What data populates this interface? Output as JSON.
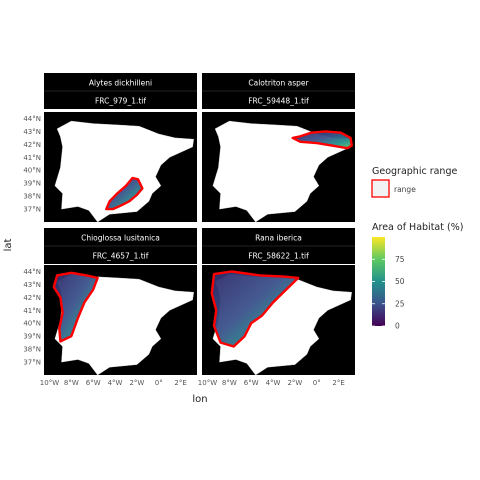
{
  "chart_data": {
    "type": "heatmap",
    "xlabel": "lon",
    "ylabel": "lat",
    "x_ticks": [
      "10°W",
      "8°W",
      "6°W",
      "4°W",
      "2°W",
      "0°",
      "2°E"
    ],
    "y_ticks": [
      "37°N",
      "38°N",
      "39°N",
      "40°N",
      "41°N",
      "42°N",
      "43°N",
      "44°N"
    ],
    "xlim": [
      -10.5,
      3.5
    ],
    "ylim": [
      36,
      44.5
    ],
    "facets": [
      {
        "species": "Alytes dickhilleni",
        "file": "FRC_979_1.tif",
        "range_outline": [
          [
            -4.2,
            37.0
          ],
          [
            -3.4,
            37.3
          ],
          [
            -2.7,
            37.6
          ],
          [
            -2.0,
            38.1
          ],
          [
            -1.5,
            38.6
          ],
          [
            -1.9,
            39.3
          ],
          [
            -2.4,
            39.4
          ],
          [
            -3.0,
            38.8
          ],
          [
            -3.8,
            38.2
          ],
          [
            -4.5,
            37.6
          ],
          [
            -4.8,
            37.0
          ]
        ]
      },
      {
        "species": "Calotriton asper",
        "file": "FRC_59448_1.tif",
        "range_outline": [
          [
            -1.6,
            42.6
          ],
          [
            -0.5,
            42.9
          ],
          [
            0.8,
            43.0
          ],
          [
            2.2,
            42.9
          ],
          [
            3.1,
            42.5
          ],
          [
            3.2,
            41.9
          ],
          [
            2.8,
            41.7
          ],
          [
            1.4,
            41.9
          ],
          [
            0.0,
            42.1
          ],
          [
            -1.5,
            42.2
          ],
          [
            -2.2,
            42.5
          ]
        ]
      },
      {
        "species": "Chioglossa lusitanica",
        "file": "FRC_4657_1.tif",
        "range_outline": [
          [
            -9.3,
            43.7
          ],
          [
            -8.0,
            43.9
          ],
          [
            -6.6,
            43.7
          ],
          [
            -5.6,
            43.5
          ],
          [
            -6.0,
            42.6
          ],
          [
            -6.8,
            41.6
          ],
          [
            -7.4,
            40.4
          ],
          [
            -8.0,
            39.0
          ],
          [
            -9.0,
            38.6
          ],
          [
            -9.1,
            39.6
          ],
          [
            -8.8,
            40.8
          ],
          [
            -9.0,
            42.0
          ],
          [
            -9.6,
            42.8
          ]
        ]
      },
      {
        "species": "Rana iberica",
        "file": "FRC_58622_1.tif",
        "range_outline": [
          [
            -9.4,
            43.8
          ],
          [
            -7.8,
            44.0
          ],
          [
            -5.2,
            43.7
          ],
          [
            -3.0,
            43.6
          ],
          [
            -1.7,
            43.5
          ],
          [
            -2.8,
            42.6
          ],
          [
            -4.0,
            41.6
          ],
          [
            -5.0,
            40.6
          ],
          [
            -6.0,
            40.0
          ],
          [
            -6.6,
            39.0
          ],
          [
            -7.6,
            38.2
          ],
          [
            -8.8,
            38.5
          ],
          [
            -9.4,
            39.8
          ],
          [
            -9.2,
            41.0
          ],
          [
            -9.6,
            42.3
          ]
        ]
      }
    ],
    "legend": {
      "range_title": "Geographic range",
      "range_label": "range",
      "range_color": "#ff0000",
      "fill_title": "Area of Habitat (%)",
      "fill_ticks": [
        0,
        25,
        50,
        75
      ],
      "fill_range": [
        0,
        100
      ],
      "colormap": [
        "#440154",
        "#3b528b",
        "#21918c",
        "#5ec962",
        "#fde725"
      ]
    },
    "grid": false,
    "legend_position": "right",
    "strip_color": "#000000"
  }
}
